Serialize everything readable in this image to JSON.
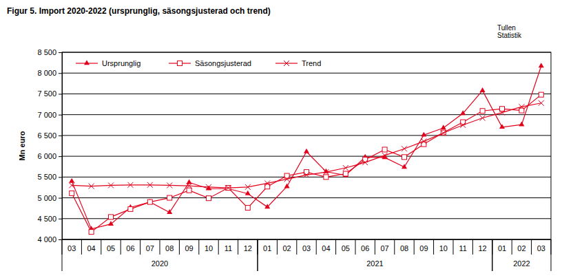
{
  "chart_data": {
    "type": "line",
    "title": "Figur  5. Import 2020-2022 (ursprunglig, säsongsjusterad och trend)",
    "y_label": "Mn euro",
    "annotations": [
      "Tullen",
      "Statistik"
    ],
    "categories": [
      "03",
      "04",
      "05",
      "06",
      "07",
      "08",
      "09",
      "10",
      "11",
      "12",
      "01",
      "02",
      "03",
      "04",
      "05",
      "06",
      "07",
      "08",
      "09",
      "10",
      "11",
      "12",
      "01",
      "02",
      "03"
    ],
    "category_groups": [
      {
        "label": "2020",
        "count": 10
      },
      {
        "label": "2021",
        "count": 12
      },
      {
        "label": "2022",
        "count": 3
      }
    ],
    "series": [
      {
        "name": "Ursprunglig",
        "color": "#e3001b",
        "marker": "triangle",
        "values": [
          5400,
          4250,
          4370,
          4770,
          4900,
          4650,
          5370,
          5220,
          5220,
          5100,
          4780,
          5270,
          6110,
          5630,
          5540,
          5980,
          5970,
          5740,
          6510,
          6680,
          7030,
          7580,
          6700,
          6760,
          8170
        ]
      },
      {
        "name": "Säsongsjusterad",
        "color": "#e3001b",
        "marker": "square",
        "values": [
          5110,
          4180,
          4540,
          4730,
          4900,
          5000,
          5180,
          4990,
          5240,
          4760,
          5270,
          5530,
          5620,
          5500,
          5580,
          5920,
          6160,
          5980,
          6290,
          6570,
          6820,
          7090,
          7140,
          7100,
          7480
        ]
      },
      {
        "name": "Trend",
        "color": "#e3001b",
        "marker": "x",
        "values": [
          5300,
          5280,
          5300,
          5310,
          5310,
          5300,
          5290,
          5260,
          5240,
          5260,
          5350,
          5450,
          5550,
          5620,
          5720,
          5850,
          6020,
          6180,
          6360,
          6560,
          6750,
          6920,
          7050,
          7190,
          7280
        ]
      }
    ],
    "ylim": [
      4000,
      8500
    ],
    "yticks": [
      {
        "value": 4000,
        "label": "4 000"
      },
      {
        "value": 4500,
        "label": "4 500"
      },
      {
        "value": 5000,
        "label": "5 000"
      },
      {
        "value": 5500,
        "label": "5 500"
      },
      {
        "value": 6000,
        "label": "6 000"
      },
      {
        "value": 6500,
        "label": "6 500"
      },
      {
        "value": 7000,
        "label": "7 000"
      },
      {
        "value": 7500,
        "label": "7 500"
      },
      {
        "value": 8000,
        "label": "8 000"
      },
      {
        "value": 8500,
        "label": "8 500"
      }
    ],
    "grid": true,
    "legend": "top-left"
  }
}
